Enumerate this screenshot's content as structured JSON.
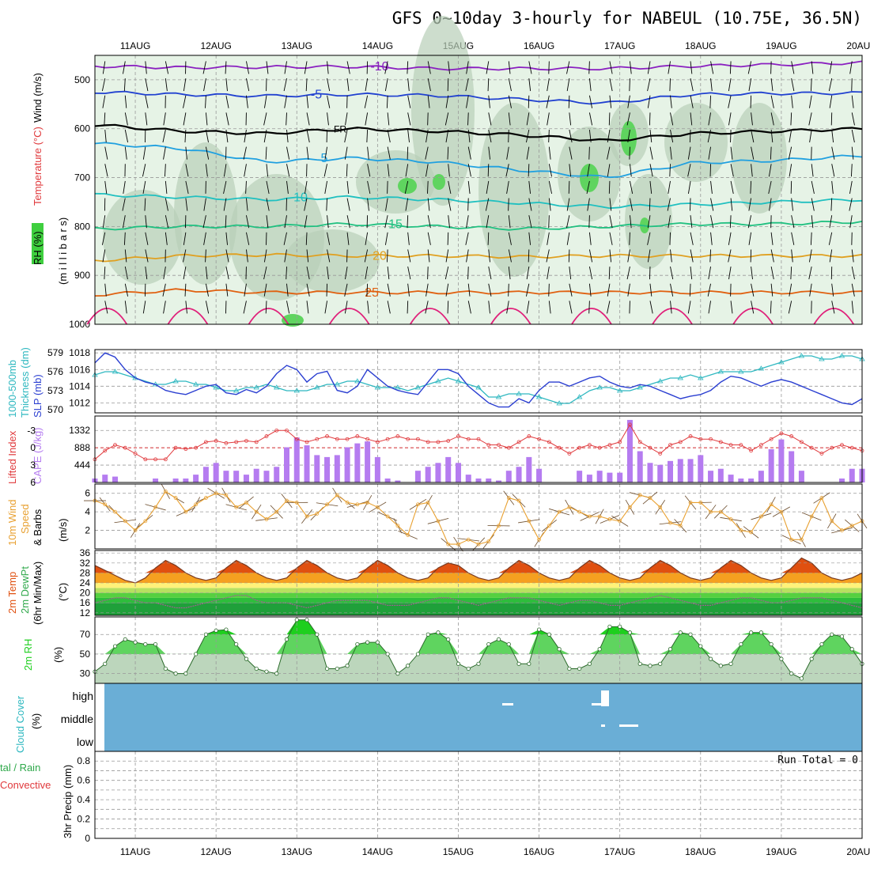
{
  "title": "GFS 0~10day 3-hourly for NABEUL (10.75E, 36.5N)",
  "dates": [
    "11AUG",
    "12AUG",
    "13AUG",
    "14AUG",
    "15AUG",
    "16AUG",
    "17AUG",
    "18AUG",
    "19AUG",
    "20AUG"
  ],
  "colors": {
    "rh_fill": "#3fcf3f",
    "slp": "#2b3fd1",
    "thickness": "#2fb8c0",
    "cape": "#b57cf0",
    "lifted": "#e0393c",
    "wind": "#e8a030",
    "temp_hot": "#e05010",
    "temp_mid": "#f5a020",
    "temp_warm": "#ffe060",
    "dew": "#2ea84a",
    "rh2m": "#1ecf1e",
    "cloud": "#6aaed6"
  },
  "panel_labels": {
    "upper_wind": "Wind (m/s)",
    "upper_temp": "Temperature (°C)",
    "upper_rh": "RH (%)",
    "upper_mb": "(m i l l i b a r s)",
    "slp_label": "SLP (mb)",
    "thick_label1": "1000-500mb",
    "thick_label2": "Thickness (dm)",
    "lifted_label": "Lifted Index",
    "cape_label": "CAPE (J/kg)",
    "wind_label1": "10m Wind",
    "wind_label2": "Speed",
    "wind_label3": "& Barbs",
    "wind_unit": "(m/s)",
    "temp_label1": "2m Temp",
    "temp_label2": "2m DewPt",
    "temp_label3": "(6hr Min/Max)",
    "temp_unit": "(°C)",
    "rh_label": "2m RH",
    "rh_unit": "(%)",
    "cloud_label": "Cloud Cover",
    "cloud_unit": "(%)",
    "precip_label1": "tal / Rain",
    "precip_label2": "Convective",
    "precip_label3": "3hr Precip (mm)",
    "run_total": "Run Total = 0",
    "contour_fr": "FR"
  },
  "chart_data": {
    "type": "meteogram",
    "x": {
      "start": "10AUG 12Z",
      "step_hours": 3,
      "count": 77
    },
    "upper_air": {
      "ylabel": "millibars",
      "yticks": [
        500,
        600,
        700,
        800,
        900,
        1000
      ],
      "ylim": [
        450,
        1000
      ],
      "isotherms": [
        {
          "label": "-10",
          "mb": [
            472,
            475,
            474,
            473,
            477,
            477,
            477,
            472,
            469,
            465
          ]
        },
        {
          "label": "-5",
          "mb": [
            525,
            530,
            533,
            530,
            532,
            540,
            548,
            530,
            528,
            527
          ]
        },
        {
          "label": "FR",
          "mb": [
            592,
            605,
            610,
            600,
            605,
            613,
            625,
            610,
            605,
            600
          ]
        },
        {
          "label": "5",
          "mb": [
            630,
            640,
            668,
            660,
            668,
            685,
            700,
            670,
            665,
            655
          ]
        },
        {
          "label": "10",
          "mb": [
            735,
            740,
            745,
            740,
            745,
            752,
            760,
            755,
            750,
            745
          ]
        },
        {
          "label": "15",
          "mb": [
            805,
            800,
            800,
            795,
            800,
            805,
            800,
            795,
            795,
            790
          ]
        },
        {
          "label": "20",
          "mb": [
            870,
            860,
            858,
            860,
            860,
            862,
            860,
            860,
            860,
            860
          ]
        },
        {
          "label": "25",
          "mb": [
            940,
            930,
            935,
            935,
            935,
            935,
            935,
            935,
            935,
            935
          ]
        }
      ]
    },
    "slp": {
      "yticks": [
        1012,
        1014,
        1016,
        1018
      ],
      "values": [
        1016.8,
        1018.0,
        1017.5,
        1016.0,
        1015.0,
        1014.5,
        1014.2,
        1013.5,
        1013.2,
        1013.0,
        1013.5,
        1014.0,
        1014.2,
        1013.2,
        1013.0,
        1013.6,
        1013.2,
        1014.0,
        1015.5,
        1016.5,
        1016.0,
        1014.5,
        1015.5,
        1015.8,
        1013.5,
        1013.2,
        1014.0,
        1016.0,
        1015.0,
        1014.0,
        1013.5,
        1013.2,
        1013.0,
        1014.5,
        1016.0,
        1016.0,
        1015.5,
        1014.0,
        1013.0,
        1012.0,
        1011.5,
        1011.5,
        1012.5,
        1012.0,
        1013.5,
        1014.5,
        1014.5,
        1014.0,
        1014.5,
        1015.0,
        1015.2,
        1014.5,
        1014.0,
        1013.8,
        1014.2,
        1014.0,
        1013.5,
        1013.0,
        1012.5,
        1012.8,
        1013.0,
        1013.5,
        1014.5,
        1015.2,
        1015.0,
        1014.5,
        1014.0,
        1014.5,
        1014.8,
        1014.5,
        1014.0,
        1013.5,
        1013.0,
        1012.5,
        1012.0,
        1011.8,
        1012.5
      ]
    },
    "thickness": {
      "yticks": [
        570,
        573,
        576,
        579
      ],
      "values": [
        575.5,
        576.0,
        576.0,
        575.5,
        575.0,
        574.5,
        574.0,
        574.0,
        574.5,
        574.5,
        574.0,
        574.0,
        573.5,
        573.0,
        573.0,
        573.5,
        573.5,
        574.0,
        573.5,
        573.0,
        573.0,
        573.0,
        573.5,
        574.0,
        574.0,
        574.5,
        574.5,
        574.0,
        573.5,
        573.5,
        573.5,
        573.0,
        573.5,
        574.0,
        574.5,
        575.0,
        574.5,
        574.0,
        573.5,
        572.0,
        572.0,
        572.5,
        572.5,
        572.5,
        572.0,
        571.5,
        571.0,
        571.0,
        572.0,
        573.0,
        573.5,
        573.5,
        573.0,
        573.0,
        573.5,
        574.0,
        574.5,
        575.0,
        575.0,
        575.5,
        575.0,
        575.5,
        576.0,
        576.0,
        576.0,
        576.0,
        576.5,
        577.0,
        577.5,
        578.0,
        578.5,
        578.5,
        578.0,
        578.0,
        578.5,
        578.5,
        578.0
      ]
    },
    "cape": {
      "yticks": [
        444,
        888,
        1332
      ],
      "values": [
        100,
        200,
        150,
        0,
        0,
        0,
        100,
        0,
        100,
        100,
        200,
        400,
        500,
        300,
        300,
        200,
        350,
        300,
        400,
        900,
        1150,
        950,
        700,
        650,
        700,
        900,
        1000,
        1050,
        650,
        100,
        50,
        0,
        300,
        400,
        500,
        650,
        500,
        200,
        100,
        100,
        50,
        300,
        400,
        650,
        350,
        0,
        0,
        0,
        300,
        200,
        300,
        250,
        250,
        1600,
        800,
        500,
        450,
        550,
        600,
        600,
        700,
        300,
        350,
        200,
        100,
        100,
        300,
        850,
        1100,
        800,
        300,
        0,
        0,
        0,
        100,
        350,
        350
      ]
    },
    "lifted_index": {
      "yticks": [
        -3,
        0,
        3,
        6
      ],
      "values": [
        2,
        0.5,
        -0.5,
        0,
        1,
        2,
        2,
        2,
        0,
        0.2,
        0,
        -1,
        -1.2,
        -0.8,
        -1,
        -1.2,
        -1,
        -2,
        -3,
        -3,
        -1.5,
        -1,
        -1.5,
        -2,
        -1.5,
        -1.5,
        -2,
        -1.5,
        -1,
        -1.5,
        -2,
        -1.5,
        -1.5,
        -1,
        -1,
        -1.2,
        -2,
        -1.5,
        -1.5,
        -0.5,
        -0.5,
        0,
        -1,
        -2,
        -1.5,
        -1,
        0,
        1,
        0,
        -0.5,
        0,
        -0.5,
        -1,
        -4,
        -1,
        0,
        1,
        -0.5,
        -1,
        -2,
        -1.5,
        -1.5,
        -1,
        -0.5,
        -0.5,
        0.5,
        -0.5,
        -1.5,
        -2.5,
        -2,
        -1,
        0,
        1,
        0,
        -0.5,
        0,
        0.5
      ]
    },
    "wind10m": {
      "yticks": [
        2,
        4,
        6
      ],
      "values": [
        5.2,
        4.8,
        4.0,
        3.0,
        2.0,
        3.0,
        4.5,
        6.2,
        5.5,
        4.0,
        4.8,
        5.5,
        6.0,
        5.8,
        4.5,
        5.0,
        4.0,
        3.2,
        4.0,
        5.2,
        5.0,
        3.5,
        3.8,
        4.8,
        5.8,
        5.0,
        4.8,
        5.0,
        4.5,
        3.5,
        2.5,
        1.5,
        4.8,
        5.0,
        3.0,
        0.5,
        0.5,
        1.0,
        0.5,
        0.8,
        2.5,
        5.5,
        5.2,
        3.0,
        1.0,
        2.5,
        4.0,
        4.5,
        4.0,
        3.5,
        3.5,
        3.2,
        3.0,
        4.5,
        5.8,
        5.5,
        4.5,
        2.8,
        2.5,
        5.0,
        5.0,
        4.0,
        4.0,
        3.2,
        2.0,
        1.8,
        3.5,
        4.8,
        4.0,
        1.0,
        1.0,
        3.5,
        5.5,
        3.0,
        2.0,
        2.5,
        3.0
      ]
    },
    "temp2m": {
      "yticks": [
        12,
        16,
        20,
        24,
        28,
        32,
        36
      ],
      "values": [
        31,
        29,
        27,
        25,
        24,
        26,
        30,
        33,
        31,
        28,
        26,
        25,
        26,
        30,
        33,
        31,
        28,
        26,
        25,
        26,
        30,
        33,
        31,
        28,
        26,
        25,
        26,
        30,
        33,
        31,
        28,
        26,
        25,
        26,
        30,
        32,
        31,
        28,
        26,
        25,
        26,
        30,
        33,
        31,
        28,
        26,
        25,
        26,
        30,
        33,
        31,
        28,
        26,
        25,
        26,
        30,
        33,
        31,
        28,
        26,
        25,
        26,
        30,
        33,
        31,
        28,
        26,
        25,
        26,
        30,
        34,
        32,
        28,
        26,
        25,
        26,
        28
      ]
    },
    "dewpt2m": {
      "yticks": [
        12,
        16,
        20
      ],
      "values": [
        16,
        17,
        18,
        18,
        17,
        16,
        16,
        15,
        14,
        14,
        15,
        16,
        17,
        18,
        19,
        19,
        17,
        16,
        16,
        16,
        15,
        14,
        15,
        16,
        17,
        17,
        17,
        17,
        16,
        15,
        15,
        15,
        16,
        17,
        18,
        18,
        17,
        16,
        15,
        16,
        17,
        18,
        18,
        18,
        17,
        16,
        15,
        16,
        17,
        17,
        16,
        15,
        15,
        16,
        17,
        18,
        19,
        18,
        17,
        16,
        15,
        15,
        16,
        17,
        18,
        18,
        17,
        16,
        16,
        17,
        18,
        18,
        18,
        17,
        16,
        15,
        14
      ]
    },
    "rh2m": {
      "yticks": [
        30,
        50,
        70
      ],
      "values": [
        32,
        40,
        58,
        65,
        62,
        60,
        60,
        35,
        30,
        30,
        50,
        70,
        74,
        75,
        60,
        45,
        35,
        32,
        30,
        65,
        85,
        85,
        70,
        35,
        35,
        38,
        60,
        62,
        62,
        50,
        30,
        38,
        50,
        70,
        72,
        65,
        40,
        35,
        40,
        60,
        65,
        60,
        40,
        40,
        75,
        70,
        55,
        35,
        35,
        40,
        55,
        78,
        78,
        72,
        40,
        38,
        40,
        55,
        72,
        70,
        58,
        45,
        38,
        40,
        60,
        72,
        72,
        60,
        45,
        30,
        25,
        45,
        60,
        70,
        68,
        55,
        40
      ]
    },
    "cloud_cover": {
      "levels": [
        "high",
        "middle",
        "low"
      ]
    },
    "precip3hr": {
      "yticks": [
        0,
        0.2,
        0.4,
        0.6,
        0.8
      ],
      "total": 0
    }
  }
}
